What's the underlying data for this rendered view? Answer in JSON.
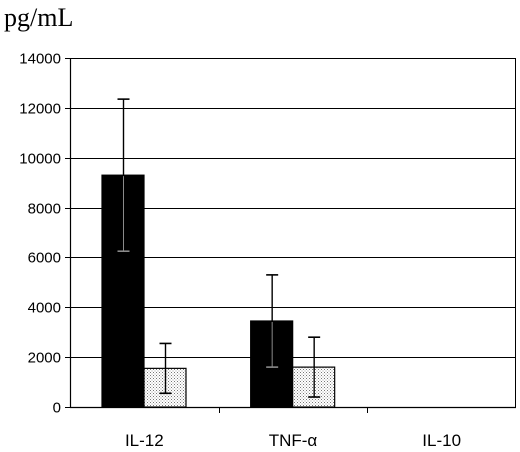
{
  "chart_data": {
    "type": "bar",
    "title": "",
    "xlabel": "",
    "ylabel": "pg/mL",
    "ylim": [
      0,
      14000
    ],
    "yticks": [
      0,
      2000,
      4000,
      6000,
      8000,
      10000,
      12000,
      14000
    ],
    "ytick_labels": [
      "0",
      "2000",
      "4000",
      "6000",
      "8000",
      "10000",
      "12000",
      "14000"
    ],
    "grid": true,
    "legend": "none",
    "categories": [
      "IL-12",
      "TNF-α",
      "IL-10"
    ],
    "series": [
      {
        "values": [
          9300,
          3450,
          0
        ],
        "error": [
          3050,
          1850,
          0
        ],
        "color": "#000000",
        "pattern": "solid"
      },
      {
        "values": [
          1550,
          1600,
          0
        ],
        "error": [
          1000,
          1200,
          0
        ],
        "color": "#e8e8e8",
        "pattern": "dotted"
      }
    ]
  }
}
